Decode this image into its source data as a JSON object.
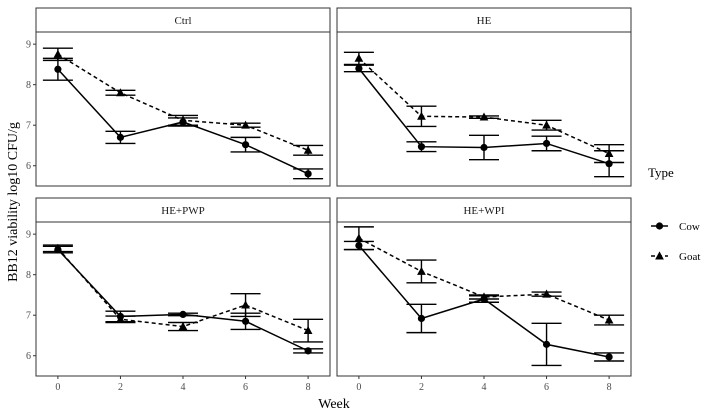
{
  "chart_data": {
    "type": "line",
    "xlabel": "Week",
    "ylabel": "BB12 viability log10 CFU/g",
    "x_ticks": [
      0,
      2,
      4,
      6,
      8
    ],
    "y_ticks": [
      6,
      7,
      8,
      9
    ],
    "xlim": [
      -0.7,
      8.7
    ],
    "ylim": [
      5.5,
      9.3
    ],
    "grid": false,
    "legend": {
      "title": "Type",
      "position": "right",
      "entries": [
        {
          "name": "Cow",
          "marker": "circle",
          "line": "solid"
        },
        {
          "name": "Goat",
          "marker": "triangle",
          "line": "dashed"
        }
      ]
    },
    "panels": [
      {
        "title": "Ctrl",
        "series": [
          {
            "name": "Cow",
            "x": [
              0,
              2,
              4,
              6,
              8
            ],
            "y": [
              8.38,
              6.7,
              7.08,
              6.52,
              5.8
            ],
            "err": [
              0.27,
              0.15,
              0.1,
              0.18,
              0.12
            ]
          },
          {
            "name": "Goat",
            "x": [
              0,
              2,
              4,
              6,
              8
            ],
            "y": [
              8.75,
              7.8,
              7.12,
              7.0,
              6.38
            ],
            "err": [
              0.15,
              0.06,
              0.12,
              0.05,
              0.12
            ]
          }
        ]
      },
      {
        "title": "HE",
        "series": [
          {
            "name": "Cow",
            "x": [
              0,
              2,
              4,
              6,
              8
            ],
            "y": [
              8.4,
              6.47,
              6.45,
              6.55,
              6.05
            ],
            "err": [
              0.08,
              0.12,
              0.3,
              0.18,
              0.32
            ]
          },
          {
            "name": "Goat",
            "x": [
              0,
              2,
              4,
              6,
              8
            ],
            "y": [
              8.65,
              7.22,
              7.2,
              7.0,
              6.3
            ],
            "err": [
              0.15,
              0.25,
              0.03,
              0.12,
              0.22
            ]
          }
        ]
      },
      {
        "title": "HE+PWP",
        "series": [
          {
            "name": "Cow",
            "x": [
              0,
              2,
              4,
              6,
              8
            ],
            "y": [
              8.62,
              6.97,
              7.02,
              6.85,
              6.12
            ],
            "err": [
              0.08,
              0.13,
              0.03,
              0.2,
              0.05
            ]
          },
          {
            "name": "Goat",
            "x": [
              0,
              2,
              4,
              6,
              8
            ],
            "y": [
              8.65,
              6.9,
              6.72,
              7.25,
              6.62
            ],
            "err": [
              0.08,
              0.08,
              0.1,
              0.28,
              0.28
            ]
          }
        ]
      },
      {
        "title": "HE+WPI",
        "series": [
          {
            "name": "Cow",
            "x": [
              0,
              2,
              4,
              6,
              8
            ],
            "y": [
              8.72,
              6.92,
              7.4,
              6.28,
              5.97
            ],
            "err": [
              0.1,
              0.35,
              0.08,
              0.52,
              0.1
            ]
          },
          {
            "name": "Goat",
            "x": [
              0,
              2,
              4,
              6,
              8
            ],
            "y": [
              8.9,
              8.08,
              7.45,
              7.52,
              6.88
            ],
            "err": [
              0.28,
              0.28,
              0.05,
              0.05,
              0.12
            ]
          }
        ]
      }
    ]
  }
}
